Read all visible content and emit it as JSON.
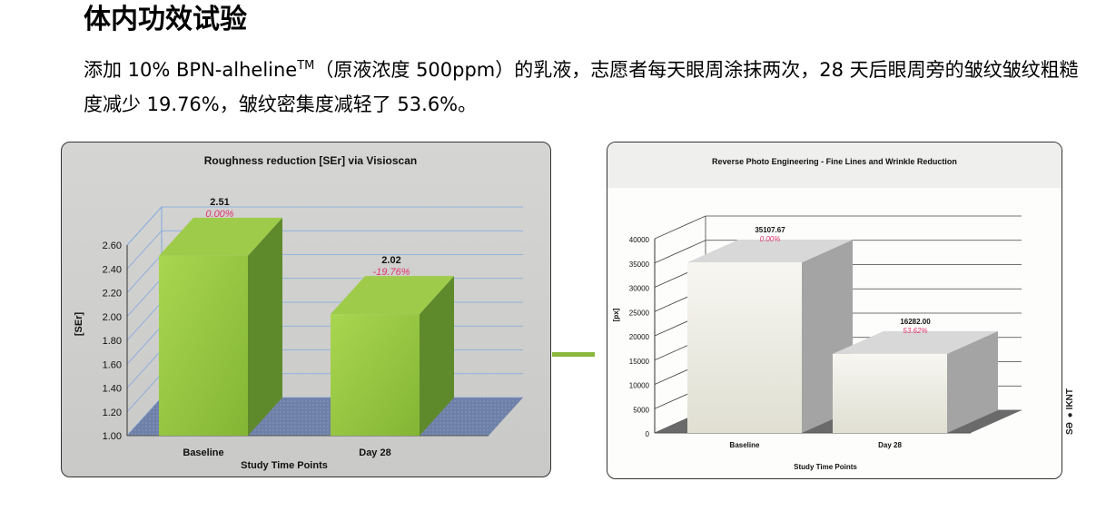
{
  "heading": "体内功效试验",
  "paragraph": {
    "part1": "添加 10% BPN-alheline",
    "tm": "TM",
    "part2": "（原液浓度 500ppm）的乳液，志愿者每天眼周涂抹两次，28 天后眼周旁的皱纹皱纹粗糙度减少 19.76%，皱纹密集度减轻了 53.6%。"
  },
  "edge_text": "ЅӘ ●IKNT",
  "colors": {
    "left_bar_front": "#95c43f",
    "left_bar_top": "#9ecb4a",
    "left_bar_side": "#5f8a2c",
    "left_floor": "#6f80a8",
    "left_grid": "#7da8e0",
    "right_bar_front": "#e7e5d9",
    "right_bar_top": "#d8d8d8",
    "right_bar_side": "#a4a4a4",
    "right_floor": "#6a6a6a",
    "pct_label": "#e0336f",
    "connector": "#8ab73d"
  },
  "chart_data": [
    {
      "type": "bar",
      "title": "Roughness reduction [SEr] via Visioscan",
      "xlabel": "Study Time Points",
      "ylabel": "[SEr]",
      "categories": [
        "Baseline",
        "Day 28"
      ],
      "values": [
        2.51,
        2.02
      ],
      "value_labels": [
        "2.51",
        "2.02"
      ],
      "change_labels": [
        "0.00%",
        "-19.76%"
      ],
      "ylim": [
        1.0,
        2.6
      ],
      "yticks": [
        "1.00",
        "1.20",
        "1.40",
        "1.60",
        "1.80",
        "2.00",
        "2.20",
        "2.40",
        "2.60"
      ],
      "grid": true,
      "style": "3d"
    },
    {
      "type": "bar",
      "title": "Reverse Photo Engineering - Fine Lines and Wrinkle Reduction",
      "xlabel": "Study Time Points",
      "ylabel": "[px]",
      "categories": [
        "Baseline",
        "Day 28"
      ],
      "values": [
        35107.67,
        16282.0
      ],
      "value_labels": [
        "35107.67",
        "16282.00"
      ],
      "change_labels": [
        "0.00%",
        "53.62%"
      ],
      "ylim": [
        0,
        40000
      ],
      "yticks": [
        "0",
        "5000",
        "10000",
        "15000",
        "20000",
        "25000",
        "30000",
        "35000",
        "40000"
      ],
      "grid": true,
      "style": "3d"
    }
  ]
}
